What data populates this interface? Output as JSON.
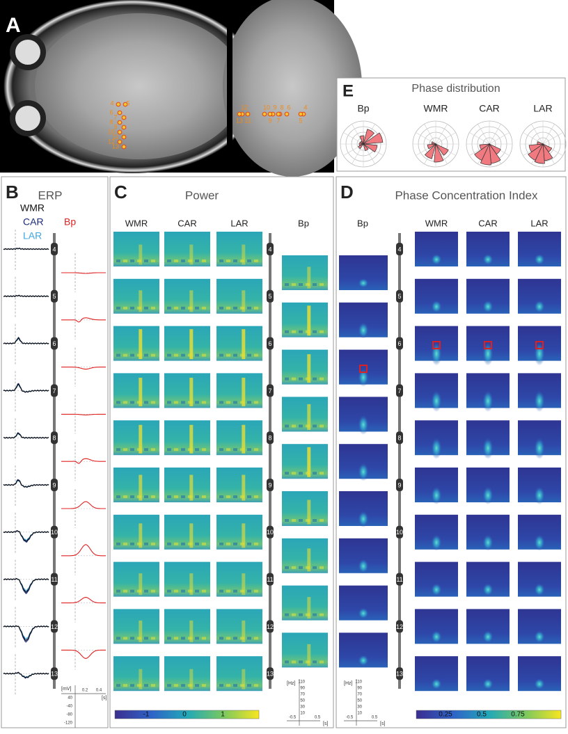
{
  "panel_a": {
    "label": "A",
    "axial_electrodes": [
      "4",
      "5",
      "6",
      "7",
      "8",
      "9",
      "10",
      "11",
      "12",
      "13"
    ],
    "sagittal_electrodes": [
      "12",
      "10",
      "9",
      "8",
      "6",
      "4",
      "13",
      "11",
      "9",
      "7",
      "5"
    ]
  },
  "panel_b": {
    "label": "B",
    "title": "ERP",
    "legend": [
      "WMR",
      "CAR",
      "LAR"
    ],
    "bp_label": "Bp",
    "electrodes": [
      "4",
      "5",
      "6",
      "7",
      "8",
      "9",
      "10",
      "11",
      "12",
      "13"
    ],
    "y_unit": "[mV]",
    "y_ticks": [
      "40",
      "-40",
      "-80",
      "-120"
    ],
    "x_ticks": [
      "0.2",
      "0.4"
    ],
    "x_unit": "[s]"
  },
  "panel_c": {
    "label": "C",
    "title": "Power",
    "columns": [
      "WMR",
      "CAR",
      "LAR"
    ],
    "bp_label": "Bp",
    "electrodes": [
      "4",
      "5",
      "6",
      "7",
      "8",
      "9",
      "10",
      "11",
      "12",
      "13"
    ],
    "y_unit": "[Hz]",
    "y_ticks": [
      "110",
      "90",
      "70",
      "50",
      "30",
      "10"
    ],
    "x_ticks": [
      "-0.5",
      "0.5"
    ],
    "x_unit": "[s]",
    "colorbar_ticks": [
      "-1",
      "0",
      "1"
    ]
  },
  "panel_d": {
    "label": "D",
    "title": "Phase Concentration Index",
    "columns": [
      "WMR",
      "CAR",
      "LAR"
    ],
    "bp_label": "Bp",
    "electrodes": [
      "4",
      "5",
      "6",
      "7",
      "8",
      "9",
      "10",
      "11",
      "12",
      "13"
    ],
    "y_unit": "[Hz]",
    "y_ticks": [
      "110",
      "90",
      "70",
      "50",
      "30",
      "10"
    ],
    "x_ticks": [
      "-0.5",
      "0.5"
    ],
    "x_unit": "[s]",
    "colorbar_ticks": [
      "0.25",
      "0.5",
      "0.75"
    ]
  },
  "panel_e": {
    "label": "E",
    "title": "Phase distribution",
    "plots": [
      "Bp",
      "WMR",
      "CAR",
      "LAR"
    ]
  }
}
